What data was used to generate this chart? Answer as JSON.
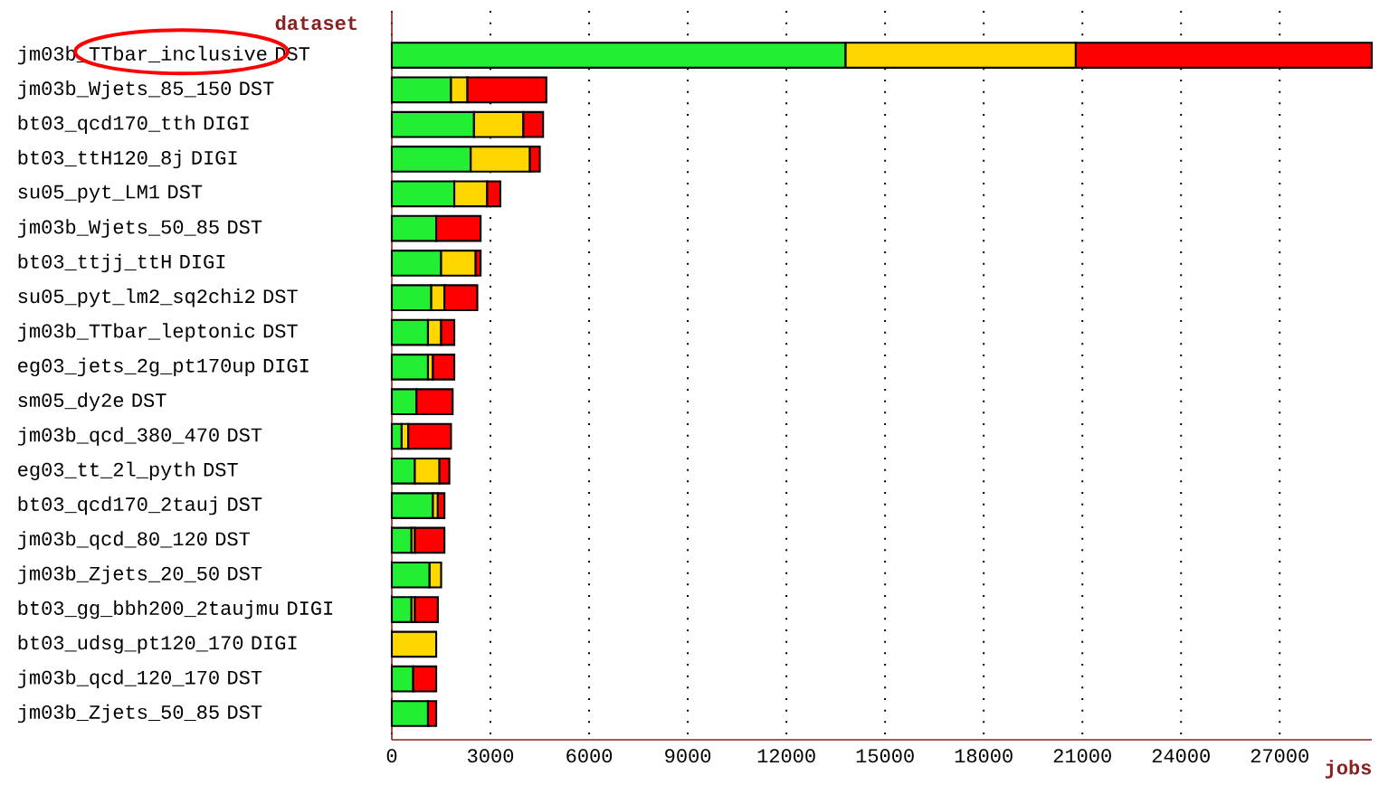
{
  "chart_data": {
    "type": "bar",
    "orientation": "horizontal",
    "stacked": true,
    "xlabel": "jobs",
    "ylabel": "dataset",
    "categories": [
      "jm03b_TTbar_inclusive DST",
      "jm03b_Wjets_85_150 DST",
      "bt03_qcd170_tth DIGI",
      "bt03_ttH120_8j DIGI",
      "su05_pyt_LM1 DST",
      "jm03b_Wjets_50_85 DST",
      "bt03_ttjj_ttH DIGI",
      "su05_pyt_lm2_sq2chi2 DST",
      "jm03b_TTbar_leptonic DST",
      "eg03_jets_2g_pt170up DIGI",
      "sm05_dy2e DST",
      "jm03b_qcd_380_470 DST",
      "eg03_tt_2l_pyth DST",
      "bt03_qcd170_2tauj DST",
      "jm03b_qcd_80_120 DST",
      "jm03b_Zjets_20_50 DST",
      "bt03_gg_bbh200_2taujmu DIGI",
      "bt03_udsg_pt120_170 DIGI",
      "jm03b_qcd_120_170 DST",
      "jm03b_Zjets_50_85 DST"
    ],
    "series": [
      {
        "color": "#22ee33",
        "values": [
          13800,
          1800,
          2500,
          2400,
          1900,
          1350,
          1500,
          1200,
          1100,
          1100,
          750,
          300,
          700,
          1250,
          600,
          1150,
          600,
          null,
          650,
          1100
        ]
      },
      {
        "color": "#ffd700",
        "values": [
          7000,
          500,
          1500,
          1800,
          1000,
          null,
          1050,
          400,
          400,
          150,
          null,
          200,
          750,
          150,
          100,
          350,
          100,
          1350,
          null,
          null
        ]
      },
      {
        "color": "#ff0000",
        "values": [
          9000,
          2400,
          600,
          300,
          400,
          1350,
          150,
          1000,
          400,
          650,
          1100,
          1300,
          300,
          200,
          900,
          null,
          700,
          null,
          700,
          250
        ]
      }
    ],
    "xlim": [
      0,
      29800
    ],
    "xticks": [
      0,
      3000,
      6000,
      9000,
      12000,
      15000,
      18000,
      21000,
      24000,
      27000
    ],
    "grid": "x"
  }
}
